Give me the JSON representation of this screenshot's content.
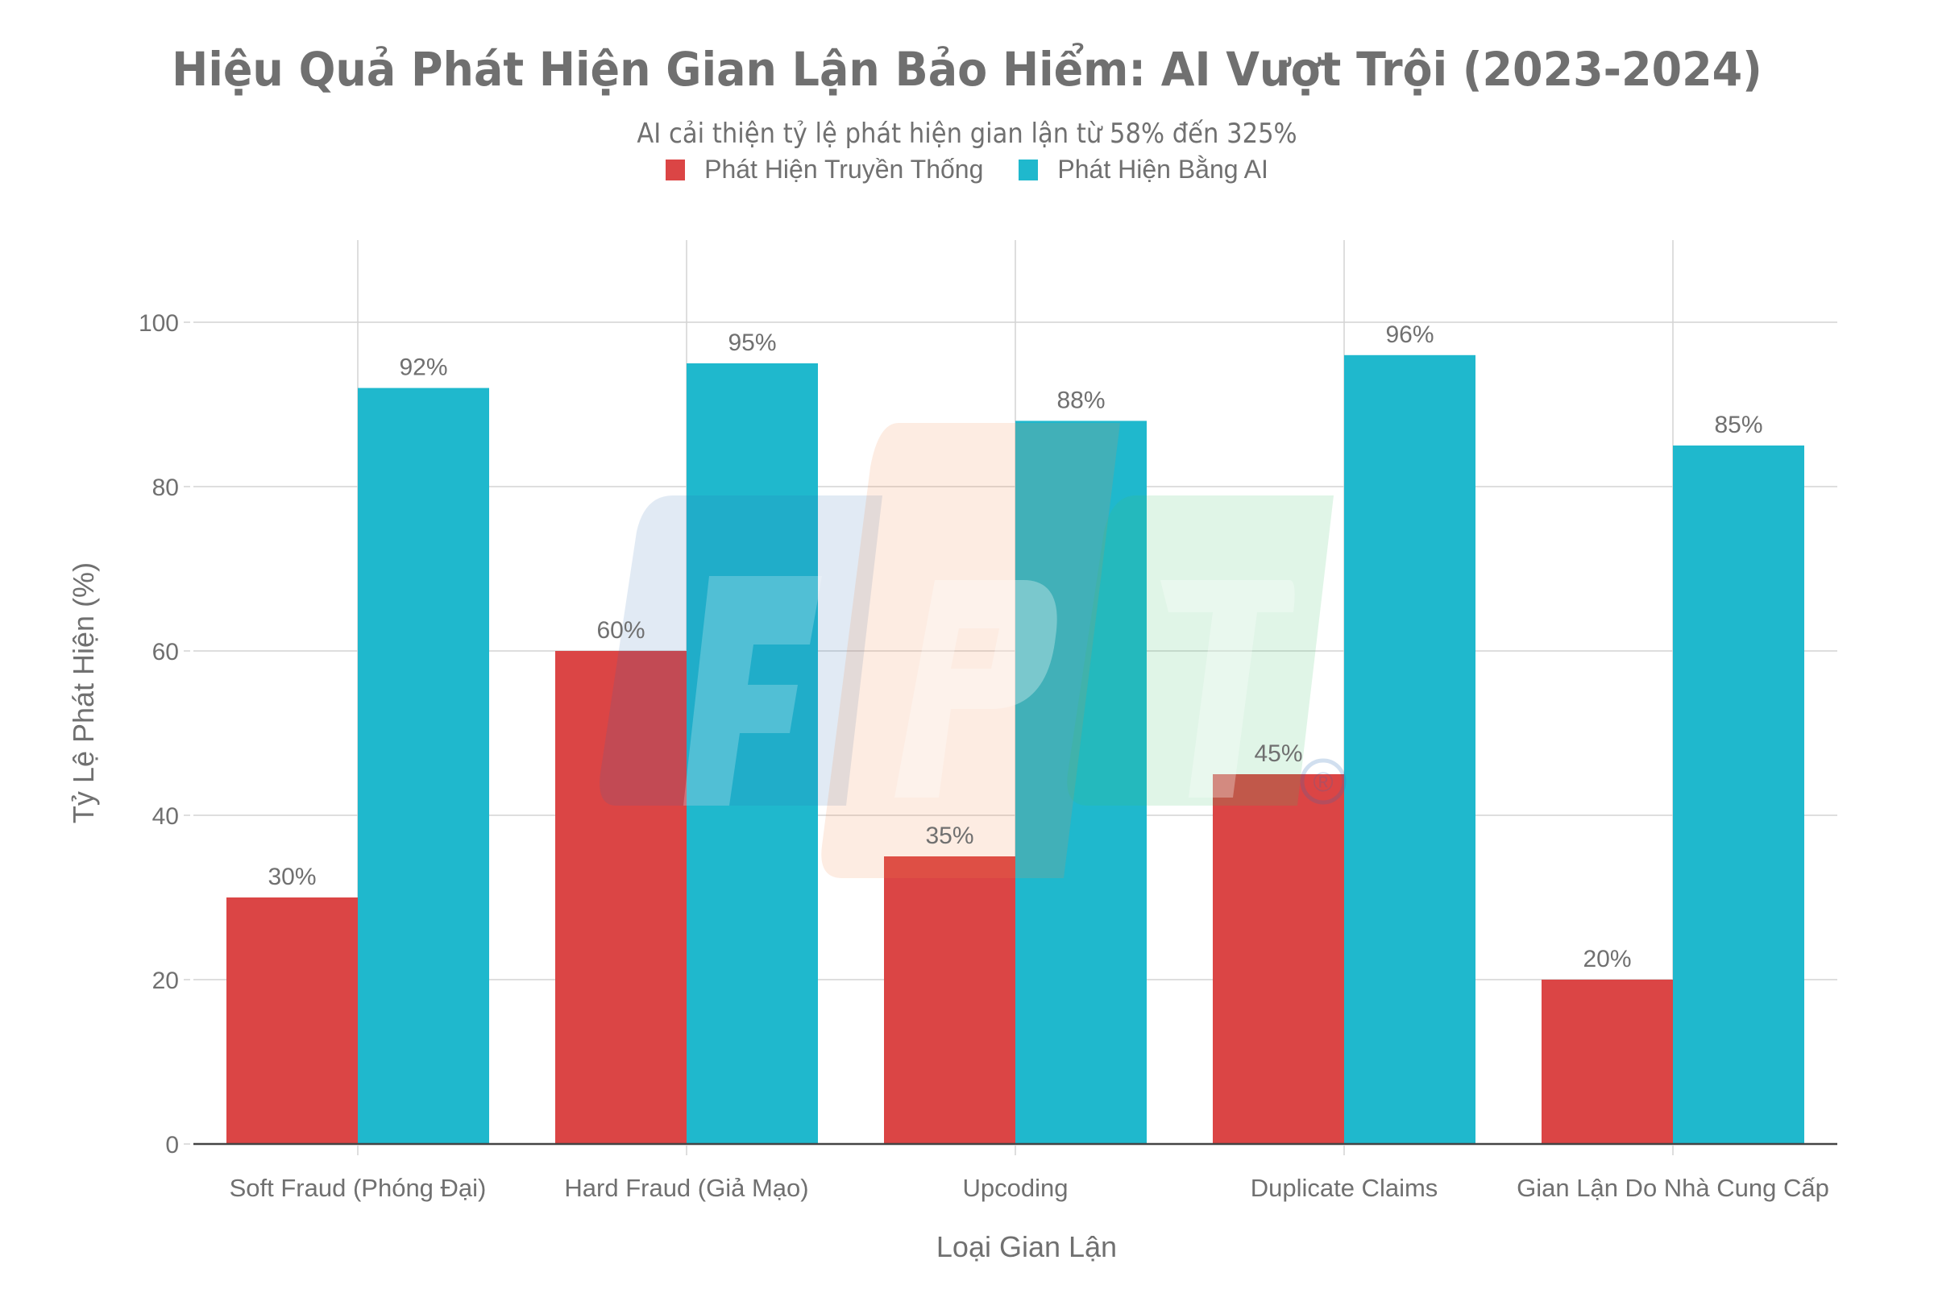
{
  "title": "Hiệu Quả Phát Hiện Gian Lận Bảo Hiểm: AI Vượt Trội (2023-2024)",
  "subtitle": "AI cải thiện tỷ lệ phát hiện gian lận từ 58% đến 325%",
  "legend": [
    {
      "label": "Phát Hiện Truyền Thống",
      "color": "#DB4545"
    },
    {
      "label": "Phát Hiện Bằng AI",
      "color": "#1FB8CD"
    }
  ],
  "axes": {
    "xlabel": "Loại Gian Lận",
    "ylabel": "Tỷ Lệ Phát Hiện (%)",
    "yticks": [
      "0",
      "20",
      "40",
      "60",
      "80",
      "100"
    ]
  },
  "watermark": {
    "text": "FPT",
    "registered_mark": "®"
  },
  "chart_data": {
    "type": "bar",
    "title": "Hiệu Quả Phát Hiện Gian Lận Bảo Hiểm: AI Vượt Trội (2023-2024)",
    "subtitle": "AI cải thiện tỷ lệ phát hiện gian lận từ 58% đến 325%",
    "categories": [
      "Soft Fraud (Phóng Đại)",
      "Hard Fraud (Giả Mạo)",
      "Upcoding",
      "Duplicate Claims",
      "Gian Lận Do Nhà Cung Cấp"
    ],
    "series": [
      {
        "name": "Phát Hiện Truyền Thống",
        "color": "#DB4545",
        "values": [
          30,
          60,
          35,
          45,
          20
        ],
        "labels": [
          "30%",
          "60%",
          "35%",
          "45%",
          "20%"
        ]
      },
      {
        "name": "Phát Hiện Bằng AI",
        "color": "#1FB8CD",
        "values": [
          92,
          95,
          88,
          96,
          85
        ],
        "labels": [
          "92%",
          "95%",
          "88%",
          "96%",
          "85%"
        ]
      }
    ],
    "xlabel": "Loại Gian Lận",
    "ylabel": "Tỷ Lệ Phát Hiện (%)",
    "ylim": [
      0,
      110
    ],
    "yticks": [
      0,
      20,
      40,
      60,
      80,
      100
    ],
    "grid": true,
    "legend_position": "top-center"
  }
}
